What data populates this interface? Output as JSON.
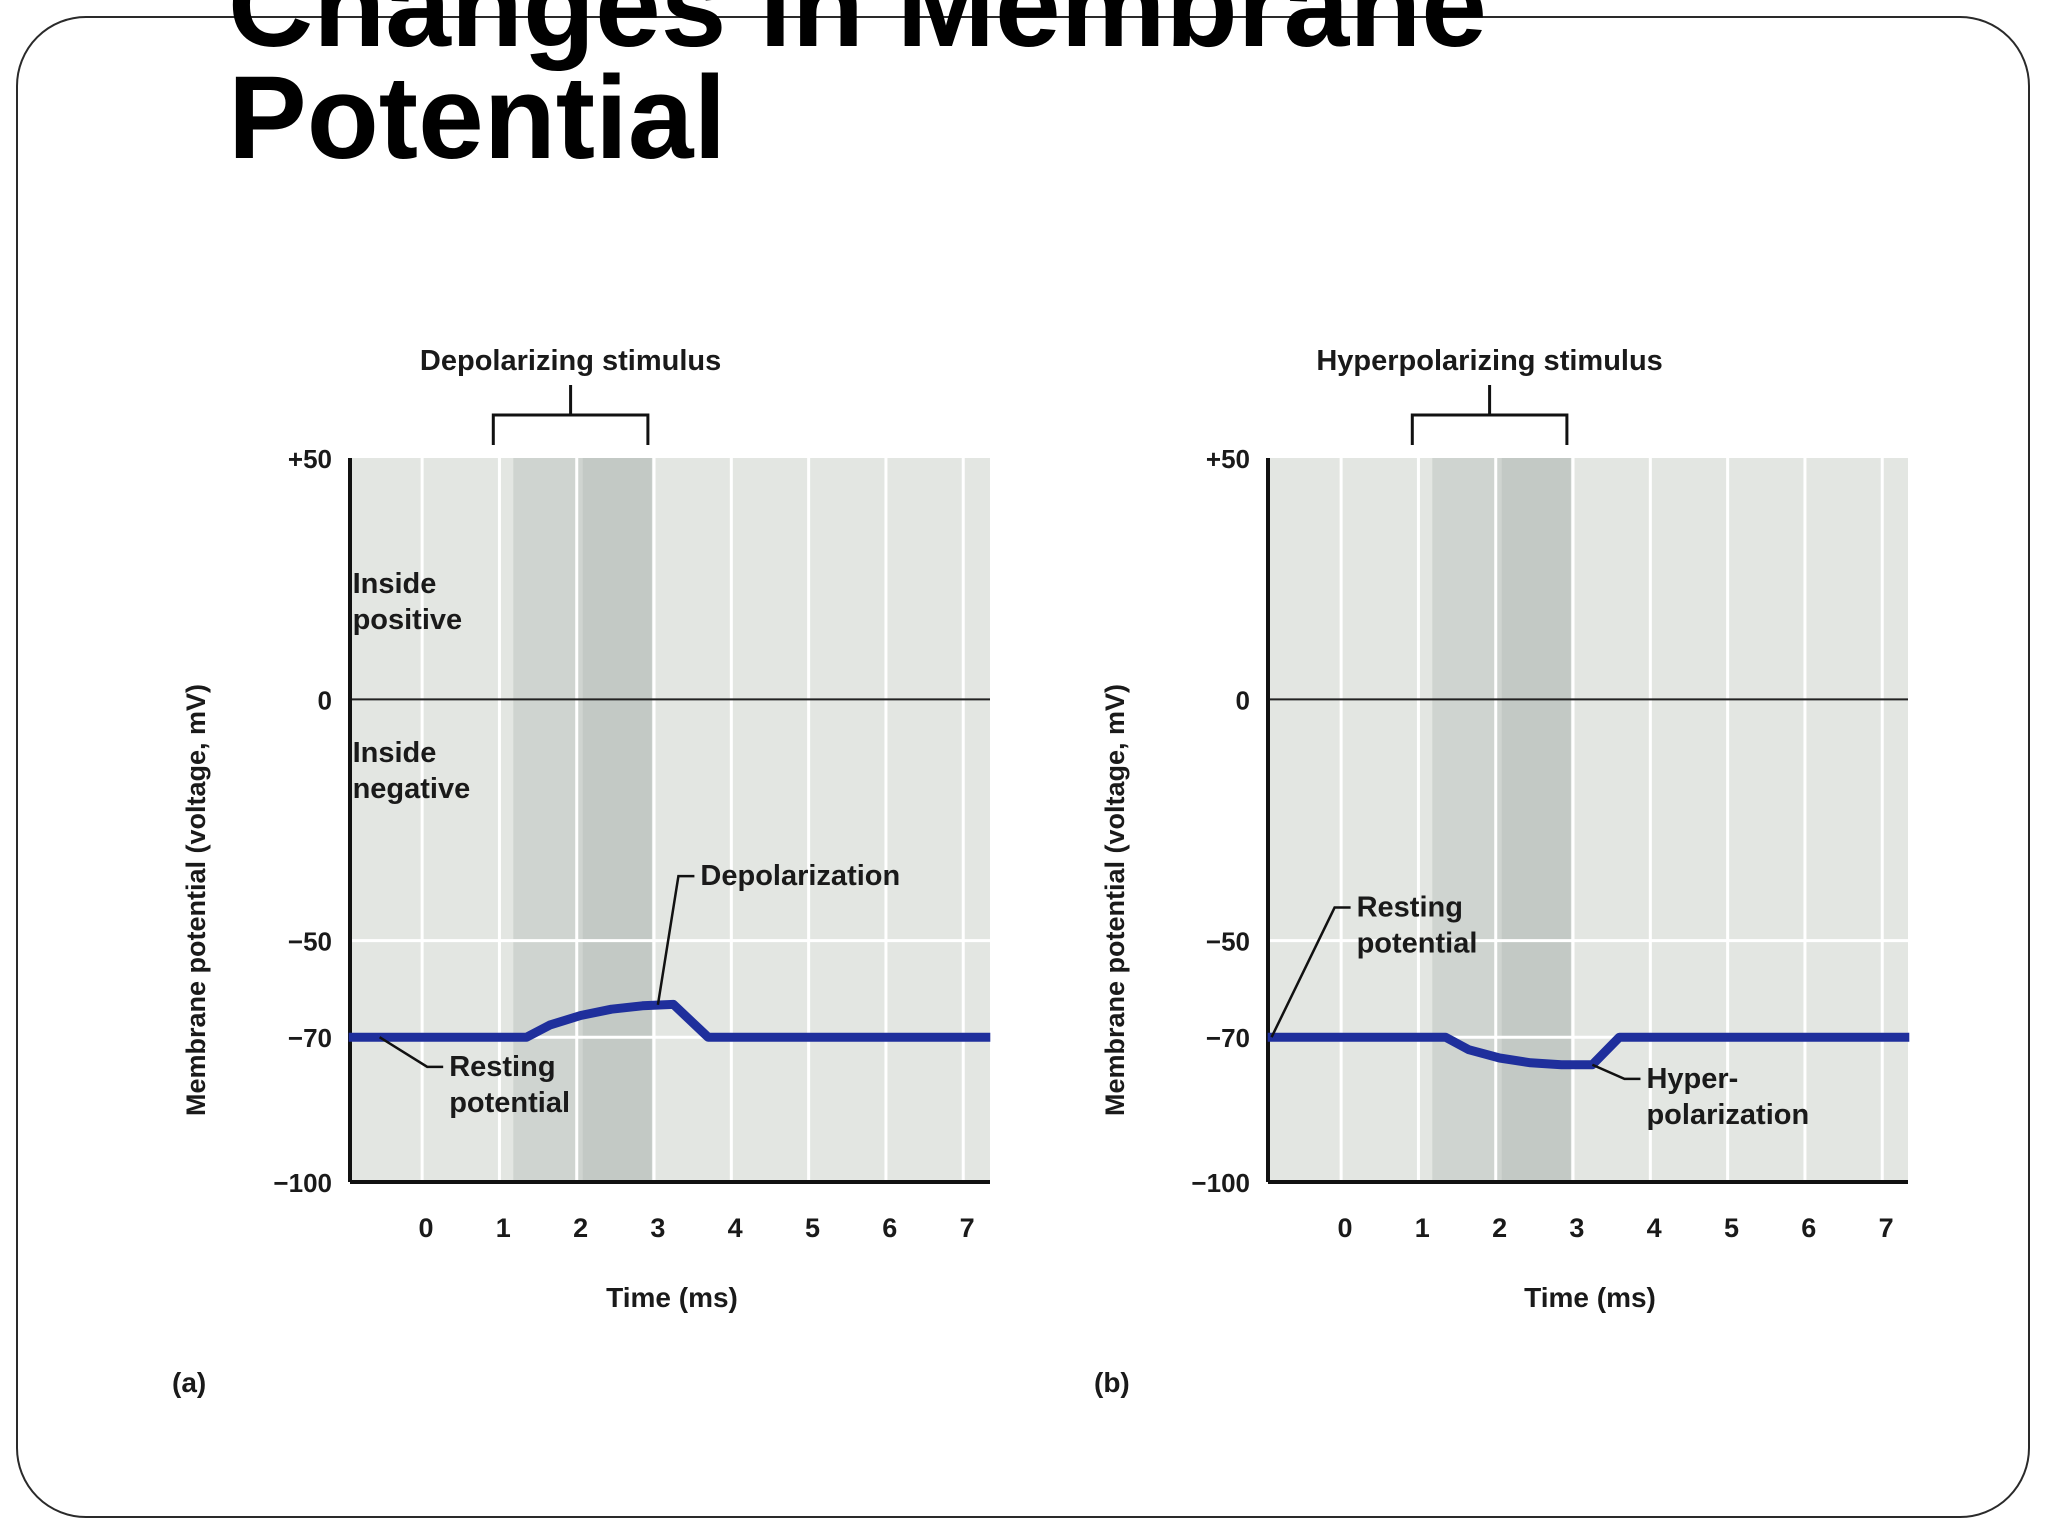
{
  "slide": {
    "title_line1": "Changes in Membrane",
    "title_line2": "Potential"
  },
  "chart_data": [
    {
      "type": "line",
      "panel_label": "(a)",
      "stimulus_label": "Depolarizing stimulus",
      "stimulus_window_ms": [
        1,
        3
      ],
      "xlabel": "Time (ms)",
      "ylabel": "Membrane potential (voltage, mV)",
      "x_ticks": [
        0,
        1,
        2,
        3,
        4,
        5,
        6,
        7
      ],
      "y_ticks": [
        50,
        0,
        -50,
        -70,
        -100
      ],
      "y_tick_labels": [
        "+50",
        "0",
        "−50",
        "−70",
        "−100"
      ],
      "xlim": [
        -1,
        7.3
      ],
      "ylim": [
        -100,
        50
      ],
      "grid": true,
      "region_labels": [
        {
          "lines": [
            "Inside",
            "positive"
          ],
          "x": -0.95,
          "y": 22
        },
        {
          "lines": [
            "Inside",
            "negative"
          ],
          "x": -0.95,
          "y": -13
        }
      ],
      "series": [
        {
          "color": "#1f2f9c",
          "x": [
            -1,
            0,
            1,
            1.3,
            1.6,
            2.0,
            2.4,
            2.8,
            3.2,
            3.65,
            4,
            5,
            6,
            7.3
          ],
          "y": [
            -70,
            -70,
            -70,
            -70,
            -67.5,
            -65.5,
            -64.2,
            -63.5,
            -63.2,
            -70,
            -70,
            -70,
            -70,
            -70
          ]
        }
      ],
      "annotations": [
        {
          "lines": [
            "Depolarization"
          ],
          "point": [
            3.0,
            -63.3
          ],
          "label_x": 3.55,
          "label_y": -38.5
        },
        {
          "lines": [
            "Resting",
            "potential"
          ],
          "point": [
            -0.6,
            -70
          ],
          "label_x": 0.3,
          "label_y": -78
        }
      ]
    },
    {
      "type": "line",
      "panel_label": "(b)",
      "stimulus_label": "Hyperpolarizing stimulus",
      "stimulus_window_ms": [
        1,
        3
      ],
      "xlabel": "Time (ms)",
      "ylabel": "Membrane potential (voltage, mV)",
      "x_ticks": [
        0,
        1,
        2,
        3,
        4,
        5,
        6,
        7
      ],
      "y_ticks": [
        50,
        0,
        -50,
        -70,
        -100
      ],
      "y_tick_labels": [
        "+50",
        "0",
        "−50",
        "−70",
        "−100"
      ],
      "xlim": [
        -1,
        7.3
      ],
      "ylim": [
        -100,
        50
      ],
      "grid": true,
      "series": [
        {
          "color": "#1f2f9c",
          "x": [
            -1,
            0,
            1,
            1.3,
            1.6,
            2.0,
            2.4,
            2.8,
            3.2,
            3.55,
            4,
            5,
            6,
            7.3
          ],
          "y": [
            -70,
            -70,
            -70,
            -70,
            -72.6,
            -74.3,
            -75.3,
            -75.7,
            -75.7,
            -70,
            -70,
            -70,
            -70,
            -70
          ]
        }
      ],
      "annotations": [
        {
          "lines": [
            "Resting",
            "potential"
          ],
          "point": [
            -0.95,
            -70
          ],
          "label_x": 0.15,
          "label_y": -45
        },
        {
          "lines": [
            "Hyper-",
            "polarization"
          ],
          "point": [
            3.2,
            -75.7
          ],
          "label_x": 3.9,
          "label_y": -80.5
        }
      ]
    }
  ]
}
